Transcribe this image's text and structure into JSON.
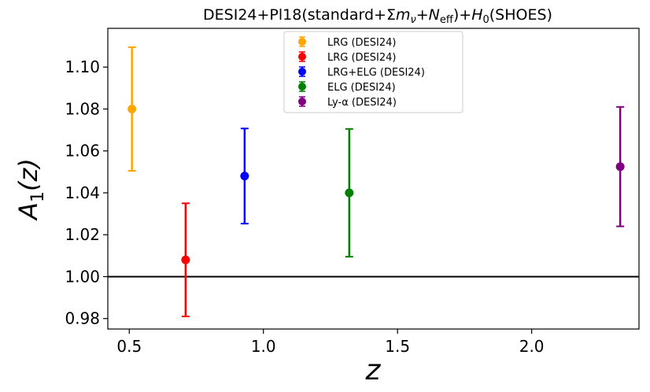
{
  "chart_data": {
    "type": "scatter",
    "title_parts": [
      "DESI24+Pl18(standard+",
      "Σ",
      "m",
      "ν",
      "+",
      "N",
      "eff",
      ")+",
      "H",
      "0",
      "(SHOES)"
    ],
    "xlabel": "z",
    "ylabel_main": "A",
    "ylabel_sub": "1",
    "ylabel_tail": "(z)",
    "xlim": [
      0.42,
      2.4
    ],
    "ylim": [
      0.975,
      1.1185
    ],
    "xticks": [
      0.5,
      1.0,
      1.5,
      2.0
    ],
    "xtick_labels": [
      "0.5",
      "1.0",
      "1.5",
      "2.0"
    ],
    "yticks": [
      0.98,
      1.0,
      1.02,
      1.04,
      1.06,
      1.08,
      1.1
    ],
    "ytick_labels": [
      "0.98",
      "1.00",
      "1.02",
      "1.04",
      "1.06",
      "1.08",
      "1.10"
    ],
    "reference_line": 1.0,
    "grid": false,
    "legend_position": "top-center",
    "series": [
      {
        "name": "LRG (DESI24)",
        "color": "#ffa500",
        "x": 0.51,
        "y": 1.08,
        "err_low": 0.0295,
        "err_high": 0.0295
      },
      {
        "name": "LRG (DESI24)",
        "color": "#ff0000",
        "x": 0.71,
        "y": 1.008,
        "err_low": 0.027,
        "err_high": 0.027
      },
      {
        "name": "LRG+ELG (DESI24)",
        "color": "#0000ff",
        "x": 0.93,
        "y": 1.048,
        "err_low": 0.0227,
        "err_high": 0.0227
      },
      {
        "name": "ELG (DESI24)",
        "color": "#008000",
        "x": 1.32,
        "y": 1.04,
        "err_low": 0.0305,
        "err_high": 0.0305
      },
      {
        "name": "Ly-α (DESI24)",
        "color": "#800080",
        "x": 2.33,
        "y": 1.0525,
        "err_low": 0.0285,
        "err_high": 0.0285
      }
    ]
  }
}
